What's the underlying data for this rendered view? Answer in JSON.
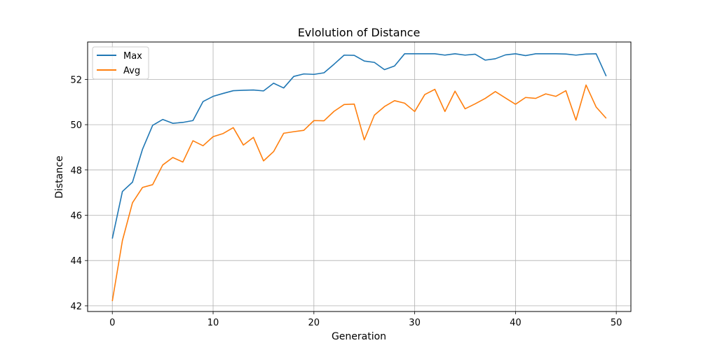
{
  "chart_data": {
    "type": "line",
    "title": "Evlolution of Distance",
    "xlabel": "Generation",
    "ylabel": "Distance",
    "xlim": [
      -2.45,
      51.45
    ],
    "ylim": [
      41.75,
      53.65
    ],
    "xticks": [
      0,
      10,
      20,
      30,
      40,
      50
    ],
    "yticks": [
      42,
      44,
      46,
      48,
      50,
      52
    ],
    "grid": true,
    "legend_position": "top-left",
    "x": [
      0,
      1,
      2,
      3,
      4,
      5,
      6,
      7,
      8,
      9,
      10,
      11,
      12,
      13,
      14,
      15,
      16,
      17,
      18,
      19,
      20,
      21,
      22,
      23,
      24,
      25,
      26,
      27,
      28,
      29,
      30,
      31,
      32,
      33,
      34,
      35,
      36,
      37,
      38,
      39,
      40,
      41,
      42,
      43,
      44,
      45,
      46,
      47,
      48,
      49
    ],
    "series": [
      {
        "name": "Max",
        "color": "#1f77b4",
        "values": [
          44.97,
          47.05,
          47.46,
          48.92,
          49.97,
          50.23,
          50.06,
          50.1,
          50.18,
          51.02,
          51.25,
          51.38,
          51.5,
          51.52,
          51.53,
          51.49,
          51.83,
          51.62,
          52.13,
          52.24,
          52.22,
          52.29,
          52.67,
          53.07,
          53.06,
          52.81,
          52.75,
          52.43,
          52.59,
          53.13,
          53.13,
          53.13,
          53.13,
          53.07,
          53.13,
          53.07,
          53.11,
          52.85,
          52.91,
          53.08,
          53.13,
          53.05,
          53.13,
          53.13,
          53.13,
          53.12,
          53.07,
          53.12,
          53.13,
          52.14
        ]
      },
      {
        "name": "Avg",
        "color": "#ff7f0e",
        "values": [
          42.21,
          44.88,
          46.55,
          47.23,
          47.35,
          48.22,
          48.55,
          48.35,
          49.29,
          49.07,
          49.47,
          49.61,
          49.87,
          49.1,
          49.44,
          48.4,
          48.81,
          49.62,
          49.69,
          49.75,
          50.18,
          50.17,
          50.59,
          50.89,
          50.91,
          49.33,
          50.42,
          50.8,
          51.06,
          50.95,
          50.58,
          51.33,
          51.56,
          50.58,
          51.48,
          50.7,
          50.92,
          51.16,
          51.46,
          51.18,
          50.9,
          51.2,
          51.16,
          51.36,
          51.25,
          51.5,
          50.2,
          51.75,
          50.78,
          50.28
        ]
      }
    ]
  }
}
